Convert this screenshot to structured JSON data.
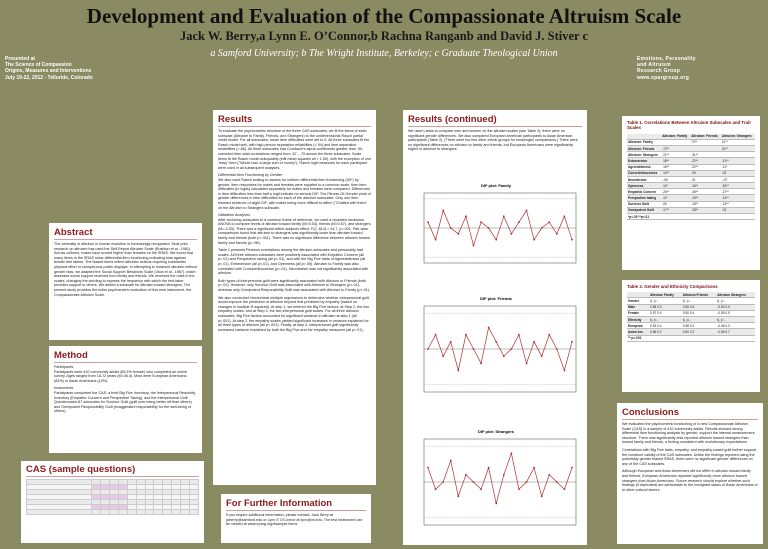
{
  "poster": {
    "title": "Development and Evaluation of the Compassionate Altruism Scale",
    "authors": "Jack W. Berry,a Lynn E. O’Connor,b Rachna Ranganb and David J. Stiver c",
    "affiliations": "a Samford University; b The Wright Institute, Berkeley; c Graduate Theological Union",
    "presented": [
      "Presented at",
      "The Science of Compassion",
      "Origins, Measures and Interventions",
      "July 19-22, 2012 - Telluride, Colorado"
    ],
    "lab": [
      "Emotions, Personality",
      "and Altruism",
      "Research Group",
      "www.epargroup.org"
    ]
  },
  "abstract": {
    "heading": "Abstract",
    "body": "The centrality of altruism in human evolution is increasingly recognized. Most prior research on altruism has used the Self-Report Altruism Scale (Rushton et al., 1981). Across cultures, males have scored higher than females on the SRAS. We found that many items in the SRAS show differential item functioning indicating bias against female test takers. The biased items reflect altruistic actions requiring substantial physical effort or conspicuous public displays. In attempting to measure altruism without gender bias, we adapted the Social Support Behaviors Scale (Vaux et al., 1987), which assesses social support received from family and friends. We reversed the roles in the scales, changing the wording to express the frequency with which the test-taker provides support to others. We added a subscale for altruism toward strangers. The present study provides the initial psychometric evaluation of this new instrument, the Compassionate Altruism Scale."
  },
  "method": {
    "heading": "Method",
    "participants_title": "Participants",
    "participants": "Participants were 410 community adults (85.4% female) who completed an online survey. Ages ranged from 18-72 years (M=36.4). Most were European Americans (83%) or Asian Americans (10%).",
    "instruments_title": "Instruments",
    "instruments": "Participants completed the CAS, a brief Big Five Inventory, the Interpersonal Reactivity Inventory (Empathic Concern and Perspective Taking), and the Interpersonal Guilt Questionnaire-67 subscales for Survivor Guilt (guilt over being better off than others) and Omnipotent Responsibility Guilt (exaggerated responsibility for the well-being of others)."
  },
  "cas": {
    "heading": "CAS (sample questions)"
  },
  "results": {
    "heading": "Results",
    "p1": "To evaluate the psychometric structure of the three CAS subscales, we fit the items of each subscale (Altruism to Family, Friends, and Strangers) to the unidimensional Rasch partial credit model. For all subscales, mean item difficulties were set to 0. All three subscales fit the Rasch model well, with high person separation reliabilities (>.94) and item separation reliabilities (>.86). All three subscales had Cronbach's alpha coefficients greater than .90; corrected item-total correlations ranged from .67 - .79 across the three subscales. Scale items fit the Rasch model adequately (infit mean squares all < 1.50), with the exception of one \"easy\" item (\"Would loan a large sum of money\"). Rasch logit measures for each participant were used in all subsequent analyses.",
    "dif_title": "Differential Item Functioning by Gender",
    "p2": "We also used Rasch scaling to assess for uniform differential item functioning (DIF) by gender. Item responses for males and females were equated to a common scale, then item difficulties (in logits) calculated separately for males and females were compared. Differences in item difficulties less than half a logit indicate no serious DIF. The Fitness-Of-Gender plots of gender differences in item difficulties for each of the altruism subscales. Only one item showed evidence of slight DIF, with males being more difficult to affirm (\"Chatted with them\" on the Altruism to Strangers subscale.",
    "val_title": "Validation Analyses",
    "p3": "After archiving subscales to a common frame of reference, we used a repeated measures ANOVA to compare levels of altruism toward family (M=0.53), friends (M=0.57), and strangers (M=-0.53). There was a significant within-subjects effect, F(2, 814) = 44.7, p<.001. Pair-wise comparisons found that altruism to strangers was significantly lower than altruism toward family and friends (both p<.001). There was no significant difference between altruism toward family and friends (p=.98).",
    "p4": "Table 1 presents Pearson correlations among the altruism subscales and personality trait scales. All three altruism subscales were positively associated with Empathic Concern (all p<.01) and Perspective taking (all p<.01), and with the Big Five traits of Agreeableness (all p<.01), Extraversion (all p<.01), and Openness (all p<.05). Altruism to Family was also correlated with Conscientiousness (p<.01). Neuroticism was not significantly associated with altruism.",
    "p5": "Both types of interpersonal guilt were significantly associated with Altruism to Friends (both p<.01). However, only Survivor Guilt was associated with Altruism to Strangers (p<.01), whereas only Omnipotent Responsibility Guilt was associated with Altruism to Family (p<.01).",
    "p6": "We also conducted hierarchical multiple regressions to determine whether interpersonal guilt would improve the prediction of altruism beyond that predicted by empathy (based on changes in multiple R-squared). At step 1, we entered the Big Five factors; at Step 2, the two empathy scales; and at Step 3, the two interpersonal guilt scales. For all three altruism subscales, Big Five factors accounted for significant variance in altruism at step 1 (all p<.001). At step 2, the empathy scales yielded significant increases in variance explained for all three types of altruism (all p<.001). Finally, at step 3, interpersonal guilt significantly increased variance explained by both the Big Five and the empathy measures (all p<.01)."
  },
  "results2": {
    "heading": "Results (continued)",
    "p1": "We used t-tests to compare men and women on the altruism scales (see Table 2); there were no significant gender differences. We also compared European American participants to Asian American participants (Table 2). (There were too few other ethnic groups for meaningful comparisons.) There were no significant differences on altruism to family and friends, but European Americans were significantly higher in altruism to strangers."
  },
  "further": {
    "heading": "For Further Information",
    "body": "If you require additional information, please contact: Jack Berry at jwberry@samford.edu or Lynn E O'Connor at lynn@wi.edu. The test instrument can be viewed at www.eparg.org/#sample-items"
  },
  "table1": {
    "title": "Table 1. Correlations Between Altruism Subscales and Trait Scales",
    "headers": [
      "",
      "Altruism: Family",
      "Altruism: Friends",
      "Altruism: Strangers"
    ],
    "rows": [
      [
        "Altruism: Family",
        "",
        "72**",
        "21**"
      ],
      [
        "Altruism: Friends",
        ".72**",
        "",
        "31**"
      ],
      [
        "Altruism: Strangers",
        ".21**",
        ".31**",
        ""
      ],
      [
        "Extraversion",
        ".18**",
        ".22**",
        ".21**"
      ],
      [
        "Agreeableness",
        ".16**",
        ".22**",
        ".11*"
      ],
      [
        "Conscientiousness",
        ".14**",
        ".05",
        ".03"
      ],
      [
        "Neuroticism",
        "-.06",
        ".01",
        "-.07"
      ],
      [
        "Openness",
        ".12*",
        ".16**",
        ".30**"
      ],
      [
        "Empathic Concern",
        ".26**",
        ".36**",
        ".27**"
      ],
      [
        "Perspective taking",
        ".11*",
        ".19**",
        ".13**"
      ],
      [
        "Survivor Guilt",
        ".05",
        ".18**",
        ".13**"
      ],
      [
        "Omnipotent Guilt",
        ".17**",
        ".28**",
        ".03"
      ],
      [
        "*p<.05   **p<.01",
        "",
        "",
        ""
      ]
    ]
  },
  "table2": {
    "title": "Table 2. Gender and Ethnicity Comparisons",
    "groups": [
      "Altruism Family",
      "Altruism Friends",
      "Altruism Strangers"
    ],
    "rows": [
      [
        "Gender",
        "t(..)=..",
        "",
        "t(..)=..",
        "",
        "t(..)=.."
      ],
      [
        "Male",
        "0.58  0.3",
        "",
        "0.55  0.6",
        "",
        "-0.50  0.4"
      ],
      [
        "Female",
        "0.57  0.4",
        "",
        "0.50  0.4",
        "",
        "-0.55  0.5"
      ],
      [
        "Ethnicity",
        "t(..)=..",
        "",
        "t(..)=..",
        "",
        "t(..)=.."
      ],
      [
        "European",
        "0.53  0.4",
        "",
        "0.58  0.3",
        "",
        "-0.46  0.3"
      ],
      [
        "Asian Am.",
        "0.66  0.2",
        "",
        "0.60  0.2",
        "",
        "-0.96  0.7"
      ],
      [
        "** p<.001",
        "",
        "",
        "",
        "",
        ""
      ]
    ]
  },
  "conclusions": {
    "heading": "Conclusions",
    "p1": "We evaluated the psychometric functioning of a new Compassionate Altruism Scale (CAS) in a sample of 410 community adults. Results showed strong differential item functioning analysis by gender, support the internal measurement structure. There was significantly less reported altruism toward strangers than toward family and friends, a finding consistent with evolutionary expectations.",
    "p2": "Correlations with Big Five traits, empathy, and empathy-based guilt further support the construct validity of the CAS subscales. Unlike the findings reported using the potentially gender biased SRAS, there were no significant gender differences on any of the CAS subscales.",
    "p3": "Although European and Asian Americans did not differ in altruism toward family and friends, European Americans reported significantly more altruism toward strangers than Asian Americans. Future research should explore whether such findings (if replicated) are attributable to the immigrant status of Asian Americans or to other cultural factors."
  },
  "chart_data": [
    {
      "type": "line",
      "title": "DIF plot: Family",
      "series": [
        {
          "values": [
            0.1,
            -0.2,
            0.3,
            0.0,
            -0.1,
            0.2,
            -0.3,
            0.1,
            0.0,
            -0.2,
            0.2,
            -0.1,
            0.1,
            0.3,
            -0.2,
            0.0,
            0.1,
            -0.1,
            0.2,
            -0.2
          ]
        }
      ]
    },
    {
      "type": "line",
      "title": "DIF plot: Friends",
      "series": [
        {
          "values": [
            0.0,
            0.2,
            -0.1,
            0.1,
            -0.3,
            0.2,
            0.0,
            -0.2,
            0.3,
            0.1,
            -0.1,
            0.0,
            0.2,
            -0.2,
            0.1,
            -0.1,
            0.2,
            0.0,
            -0.3,
            0.1
          ]
        }
      ]
    },
    {
      "type": "line",
      "title": "DIF plot: Strangers",
      "series": [
        {
          "values": [
            0.2,
            -0.1,
            0.0,
            0.3,
            -0.2,
            0.1,
            0.0,
            -0.1,
            0.2,
            -0.3,
            0.1,
            0.4,
            -0.1,
            0.0,
            0.2,
            -0.2,
            0.1,
            0.0,
            -0.1,
            0.2
          ]
        }
      ]
    }
  ]
}
